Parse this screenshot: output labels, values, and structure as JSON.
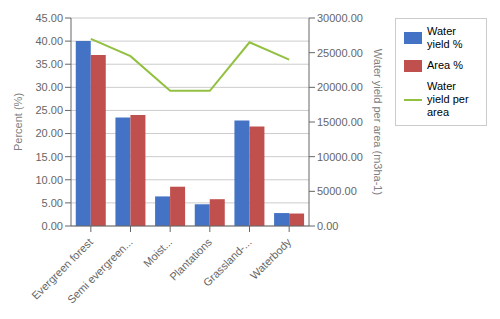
{
  "chart_data": {
    "type": "bar",
    "categories": [
      "Evergreen forest",
      "Semi evergreen...",
      "Moist...",
      "Plantations",
      "Grassland-...",
      "Waterbody"
    ],
    "series": [
      {
        "name": "Water yield %",
        "type": "bar",
        "color": "#4472C4",
        "values": [
          40.0,
          23.5,
          6.4,
          4.7,
          22.8,
          2.8
        ]
      },
      {
        "name": "Area %",
        "type": "bar",
        "color": "#C0504D",
        "values": [
          37.0,
          24.0,
          8.5,
          5.8,
          21.5,
          2.7
        ]
      },
      {
        "name": "Water yield per\narea",
        "type": "line",
        "axis": "y2",
        "color": "#92C040",
        "values": [
          27000,
          24500,
          19500,
          19500,
          26500,
          24000
        ]
      }
    ],
    "ylabel": "Percent (%)",
    "y2label": "Water yield per area (m3ha-1)",
    "ylim": [
      0,
      45
    ],
    "yticks": [
      {
        "value": 0,
        "label": "0.00"
      },
      {
        "value": 5,
        "label": "5.00"
      },
      {
        "value": 10,
        "label": "10.00"
      },
      {
        "value": 15,
        "label": "15.00"
      },
      {
        "value": 20,
        "label": "20.00"
      },
      {
        "value": 25,
        "label": "25.00"
      },
      {
        "value": 30,
        "label": "30.00"
      },
      {
        "value": 35,
        "label": "35.00"
      },
      {
        "value": 40,
        "label": "40.00"
      },
      {
        "value": 45,
        "label": "45.00"
      }
    ],
    "y2lim": [
      0,
      30000
    ],
    "y2ticks": [
      {
        "value": 0,
        "label": "0.00"
      },
      {
        "value": 5000,
        "label": "5000.00"
      },
      {
        "value": 10000,
        "label": "10000.00"
      },
      {
        "value": 15000,
        "label": "15000.00"
      },
      {
        "value": 20000,
        "label": "20000.00"
      },
      {
        "value": 25000,
        "label": "25000.00"
      },
      {
        "value": 30000,
        "label": "30000.00"
      }
    ],
    "grid": true,
    "legend": "right"
  }
}
